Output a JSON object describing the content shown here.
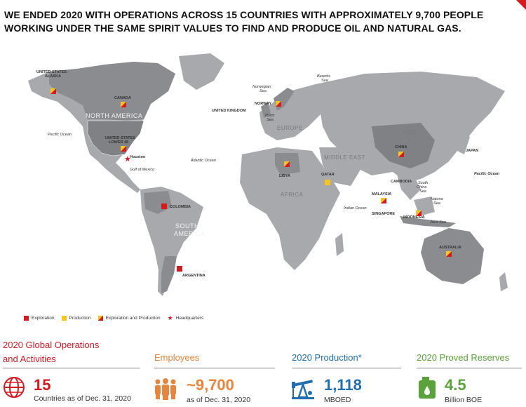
{
  "headline": "WE ENDED 2020 WITH OPERATIONS ACROSS 15 COUNTRIES WITH APPROXIMATELY 9,700 PEOPLE WORKING UNDER THE SAME SPIRIT VALUES TO FIND AND PRODUCE OIL AND NATURAL GAS.",
  "map": {
    "regions": [
      "NORTH AMERICA",
      "SOUTH AMERICA",
      "EUROPE",
      "ASIA",
      "MIDDLE EAST",
      "AFRICA"
    ],
    "locations": [
      "UNITED STATES - ALASKA",
      "CANADA",
      "UNITED STATES LOWER 48",
      "Houston",
      "COLOMBIA",
      "ARGENTINA",
      "NORWAY",
      "UNITED KINGDOM",
      "LIBYA",
      "QATAR",
      "CHINA",
      "JAPAN",
      "MALAYSIA",
      "CAMBODIA",
      "SINGAPORE",
      "INDONESIA",
      "AUSTRALIA"
    ],
    "water": [
      "Pacific Ocean",
      "Atlantic Ocean",
      "Gulf of Mexico",
      "Norwegian Sea",
      "North Sea",
      "Barents Sea",
      "Indian Ocean",
      "South China Sea",
      "Natuna Sea",
      "Java Sea",
      "Pacific Ocean"
    ],
    "colors": {
      "land": "#a7a9ac",
      "land_dark": "#8a8c8f",
      "exploration": "#d71920",
      "production": "#f7c51e"
    }
  },
  "legend": {
    "exploration": "Exploration",
    "production": "Production",
    "both": "Exploration and Production",
    "hq": "Headquarters"
  },
  "stats": [
    {
      "title_line1": "2020 Global Operations",
      "title_line2": "and Activities",
      "value": "15",
      "sub": "Countries as of Dec. 31, 2020",
      "color": "#d71920",
      "icon": "globe-icon"
    },
    {
      "title_line1": "Employees",
      "value": "~9,700",
      "sub": "as of Dec. 31, 2020",
      "color": "#e8843b",
      "icon": "people-icon"
    },
    {
      "title_line1": "2020 Production*",
      "value": "1,118",
      "sub": "MBOED",
      "color": "#1f6fb2",
      "icon": "pump-jack-icon"
    },
    {
      "title_line1": "2020 Proved Reserves",
      "value": "4.5",
      "sub": "Billion BOE",
      "color": "#5aa33a",
      "icon": "oil-can-icon"
    }
  ]
}
